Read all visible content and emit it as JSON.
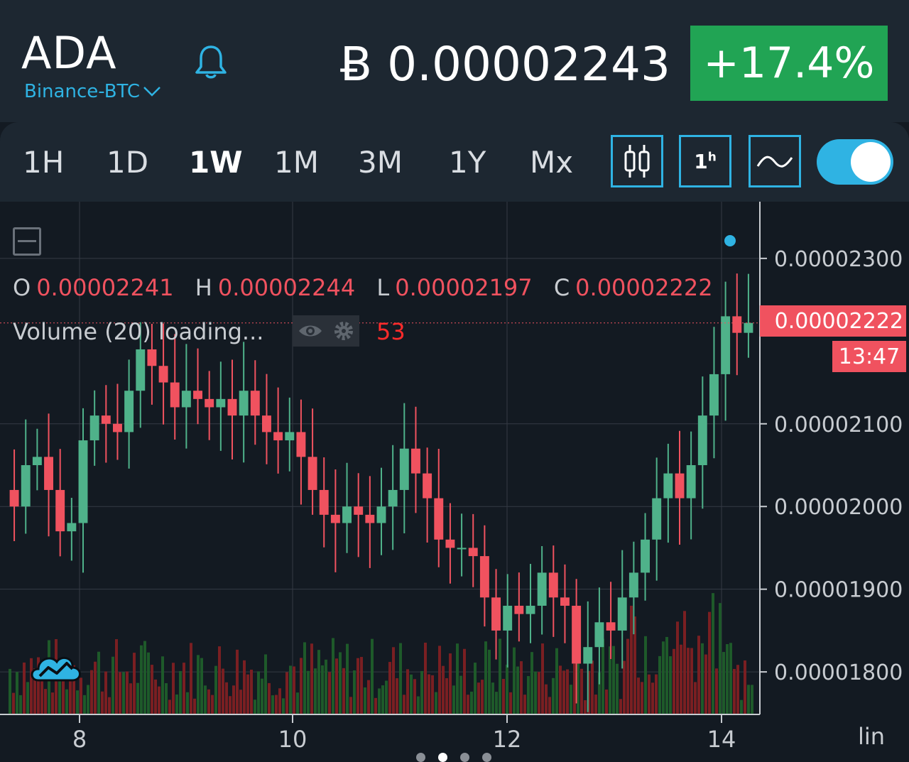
{
  "header": {
    "symbol": "ADA",
    "exchange": "Binance-BTC",
    "price": "Ƀ 0.00002243",
    "change": "+17.4%"
  },
  "toolbar": {
    "timeframes": [
      "1H",
      "1D",
      "1W",
      "1M",
      "3M",
      "1Y",
      "Mx"
    ],
    "active_timeframe": "1W",
    "candle_interval": "1h",
    "toggle_on": true
  },
  "ohlc": {
    "o_label": "O",
    "o": "0.00002241",
    "h_label": "H",
    "h": "0.00002244",
    "l_label": "L",
    "l": "0.00002197",
    "c_label": "C",
    "c": "0.00002222"
  },
  "volume": {
    "label": "Volume (20) loading...",
    "value": "53"
  },
  "current": {
    "price": "0.00002222",
    "countdown": "13:47"
  },
  "scale_mode": "lin",
  "colors": {
    "up": "#4fb28a",
    "down": "#f0525f",
    "accent": "#2fb3e3",
    "positive_badge": "#21a454"
  },
  "chart_data": {
    "type": "candlestick",
    "x_ticks": [
      "8",
      "10",
      "12",
      "14"
    ],
    "y_ticks": [
      "0.00002300",
      "0.00002100",
      "0.00002000",
      "0.00001900",
      "0.00001800"
    ],
    "ylim": [
      1.74e-05,
      2.36e-05
    ],
    "close_series": [
      2e-05,
      2.05e-05,
      2.06e-05,
      2.02e-05,
      1.97e-05,
      1.98e-05,
      2.08e-05,
      2.11e-05,
      2.1e-05,
      2.09e-05,
      2.14e-05,
      2.19e-05,
      2.17e-05,
      2.15e-05,
      2.12e-05,
      2.14e-05,
      2.13e-05,
      2.12e-05,
      2.13e-05,
      2.11e-05,
      2.14e-05,
      2.11e-05,
      2.09e-05,
      2.08e-05,
      2.09e-05,
      2.06e-05,
      2.02e-05,
      1.99e-05,
      1.98e-05,
      2e-05,
      1.99e-05,
      1.98e-05,
      2e-05,
      2.02e-05,
      2.07e-05,
      2.04e-05,
      2.01e-05,
      1.96e-05,
      1.95e-05,
      1.95e-05,
      1.94e-05,
      1.89e-05,
      1.85e-05,
      1.88e-05,
      1.87e-05,
      1.88e-05,
      1.92e-05,
      1.89e-05,
      1.88e-05,
      1.81e-05,
      1.83e-05,
      1.86e-05,
      1.85e-05,
      1.89e-05,
      1.92e-05,
      1.96e-05,
      2.01e-05,
      2.04e-05,
      2.01e-05,
      2.05e-05,
      2.11e-05,
      2.16e-05,
      2.23e-05,
      2.21e-05,
      2.222e-05
    ]
  }
}
